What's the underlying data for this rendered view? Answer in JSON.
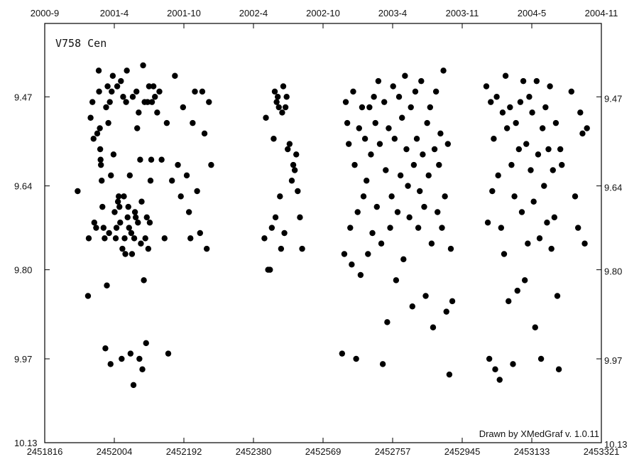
{
  "chart_data": {
    "type": "scatter",
    "title": "V758 Cen",
    "credit": "Drawn by XMedGraf v. 1.0.11",
    "xlabel": "",
    "ylabel": "",
    "xlim": [
      2451816,
      2453321
    ],
    "ylim": [
      10.13,
      9.33
    ],
    "y_inverted": true,
    "grid": false,
    "x_ticks": [
      "2451816",
      "2452004",
      "2452192",
      "2452380",
      "2452569",
      "2452757",
      "2452945",
      "2453133",
      "2453321"
    ],
    "top_ticks": [
      "2000-9",
      "2001-4",
      "2001-10",
      "2002-4",
      "2002-10",
      "2003-4",
      "2003-11",
      "2004-5",
      "2004-11"
    ],
    "y_ticks_left": [
      "9.47",
      "9.64",
      "9.80",
      "9.97",
      "10.13"
    ],
    "y_ticks_right": [
      "9.47",
      "9.64",
      "9.80",
      "9.97",
      "10.13"
    ],
    "series": [
      {
        "color": "#000000",
        "points": [
          [
            2451905,
            9.65
          ],
          [
            2451933,
            9.85
          ],
          [
            2451935,
            9.74
          ],
          [
            2451940,
            9.51
          ],
          [
            2451945,
            9.48
          ],
          [
            2451948,
            9.55
          ],
          [
            2451950,
            9.71
          ],
          [
            2451955,
            9.72
          ],
          [
            2451958,
            9.54
          ],
          [
            2451962,
            9.42
          ],
          [
            2451963,
            9.46
          ],
          [
            2451965,
            9.53
          ],
          [
            2451966,
            9.57
          ],
          [
            2451967,
            9.59
          ],
          [
            2451968,
            9.6
          ],
          [
            2451970,
            9.63
          ],
          [
            2451972,
            9.68
          ],
          [
            2451975,
            9.72
          ],
          [
            2451978,
            9.74
          ],
          [
            2451980,
            9.95
          ],
          [
            2451982,
            9.49
          ],
          [
            2451984,
            9.83
          ],
          [
            2451986,
            9.45
          ],
          [
            2451988,
            9.52
          ],
          [
            2451990,
            9.73
          ],
          [
            2451992,
            9.48
          ],
          [
            2451994,
            9.98
          ],
          [
            2451995,
            9.62
          ],
          [
            2451997,
            9.46
          ],
          [
            2452000,
            9.43
          ],
          [
            2452002,
            9.58
          ],
          [
            2452005,
            9.69
          ],
          [
            2452008,
            9.74
          ],
          [
            2452010,
            9.72
          ],
          [
            2452012,
            9.45
          ],
          [
            2452014,
            9.67
          ],
          [
            2452016,
            9.66
          ],
          [
            2452018,
            9.68
          ],
          [
            2452020,
            9.71
          ],
          [
            2452022,
            9.44
          ],
          [
            2452024,
            9.97
          ],
          [
            2452026,
            9.76
          ],
          [
            2452028,
            9.47
          ],
          [
            2452030,
            9.66
          ],
          [
            2452032,
            9.74
          ],
          [
            2452034,
            9.77
          ],
          [
            2452036,
            9.48
          ],
          [
            2452038,
            9.42
          ],
          [
            2452040,
            9.7
          ],
          [
            2452042,
            9.68
          ],
          [
            2452044,
            9.72
          ],
          [
            2452046,
            9.62
          ],
          [
            2452048,
            9.96
          ],
          [
            2452050,
            9.73
          ],
          [
            2452052,
            9.77
          ],
          [
            2452054,
            9.47
          ],
          [
            2452056,
            10.02
          ],
          [
            2452058,
            9.74
          ],
          [
            2452060,
            9.69
          ],
          [
            2452062,
            9.7
          ],
          [
            2452064,
            9.46
          ],
          [
            2452066,
            9.53
          ],
          [
            2452068,
            9.71
          ],
          [
            2452070,
            9.5
          ],
          [
            2452072,
            9.97
          ],
          [
            2452074,
            9.59
          ],
          [
            2452076,
            9.75
          ],
          [
            2452078,
            9.67
          ],
          [
            2452080,
            9.99
          ],
          [
            2452082,
            9.41
          ],
          [
            2452084,
            9.82
          ],
          [
            2452086,
            9.48
          ],
          [
            2452088,
            9.74
          ],
          [
            2452090,
            9.94
          ],
          [
            2452092,
            9.7
          ],
          [
            2452094,
            9.48
          ],
          [
            2452096,
            9.76
          ],
          [
            2452098,
            9.45
          ],
          [
            2452100,
            9.71
          ],
          [
            2452102,
            9.63
          ],
          [
            2452104,
            9.59
          ],
          [
            2452106,
            9.48
          ],
          [
            2452110,
            9.45
          ],
          [
            2452114,
            9.47
          ],
          [
            2452120,
            9.5
          ],
          [
            2452126,
            9.46
          ],
          [
            2452132,
            9.59
          ],
          [
            2452140,
            9.74
          ],
          [
            2452146,
            9.52
          ],
          [
            2452150,
            9.96
          ],
          [
            2452160,
            9.63
          ],
          [
            2452168,
            9.43
          ],
          [
            2452176,
            9.6
          ],
          [
            2452184,
            9.66
          ],
          [
            2452190,
            9.49
          ],
          [
            2452200,
            9.62
          ],
          [
            2452206,
            9.69
          ],
          [
            2452210,
            9.74
          ],
          [
            2452216,
            9.52
          ],
          [
            2452222,
            9.46
          ],
          [
            2452228,
            9.65
          ],
          [
            2452236,
            9.73
          ],
          [
            2452242,
            9.46
          ],
          [
            2452248,
            9.54
          ],
          [
            2452254,
            9.76
          ],
          [
            2452260,
            9.48
          ],
          [
            2452266,
            9.6
          ],
          [
            2452410,
            9.74
          ],
          [
            2452414,
            9.51
          ],
          [
            2452420,
            9.8
          ],
          [
            2452425,
            9.8
          ],
          [
            2452430,
            9.72
          ],
          [
            2452435,
            9.55
          ],
          [
            2452438,
            9.46
          ],
          [
            2452440,
            9.7
          ],
          [
            2452443,
            9.48
          ],
          [
            2452446,
            9.47
          ],
          [
            2452449,
            9.49
          ],
          [
            2452452,
            9.66
          ],
          [
            2452455,
            9.76
          ],
          [
            2452458,
            9.5
          ],
          [
            2452461,
            9.45
          ],
          [
            2452464,
            9.73
          ],
          [
            2452467,
            9.49
          ],
          [
            2452470,
            9.47
          ],
          [
            2452473,
            9.57
          ],
          [
            2452478,
            9.56
          ],
          [
            2452484,
            9.63
          ],
          [
            2452488,
            9.6
          ],
          [
            2452492,
            9.61
          ],
          [
            2452496,
            9.58
          ],
          [
            2452500,
            9.65
          ],
          [
            2452506,
            9.7
          ],
          [
            2452512,
            9.76
          ],
          [
            2452620,
            9.96
          ],
          [
            2452626,
            9.77
          ],
          [
            2452630,
            9.48
          ],
          [
            2452634,
            9.52
          ],
          [
            2452638,
            9.56
          ],
          [
            2452642,
            9.72
          ],
          [
            2452646,
            9.79
          ],
          [
            2452650,
            9.46
          ],
          [
            2452654,
            9.6
          ],
          [
            2452658,
            9.97
          ],
          [
            2452662,
            9.69
          ],
          [
            2452666,
            9.53
          ],
          [
            2452670,
            9.81
          ],
          [
            2452674,
            9.49
          ],
          [
            2452678,
            9.66
          ],
          [
            2452682,
            9.55
          ],
          [
            2452686,
            9.63
          ],
          [
            2452690,
            9.77
          ],
          [
            2452694,
            9.49
          ],
          [
            2452698,
            9.58
          ],
          [
            2452702,
            9.73
          ],
          [
            2452706,
            9.47
          ],
          [
            2452710,
            9.52
          ],
          [
            2452714,
            9.68
          ],
          [
            2452718,
            9.44
          ],
          [
            2452722,
            9.56
          ],
          [
            2452726,
            9.75
          ],
          [
            2452730,
            9.98
          ],
          [
            2452734,
            9.48
          ],
          [
            2452738,
            9.61
          ],
          [
            2452742,
            9.9
          ],
          [
            2452746,
            9.53
          ],
          [
            2452750,
            9.72
          ],
          [
            2452754,
            9.66
          ],
          [
            2452758,
            9.45
          ],
          [
            2452762,
            9.55
          ],
          [
            2452766,
            9.82
          ],
          [
            2452770,
            9.69
          ],
          [
            2452774,
            9.47
          ],
          [
            2452778,
            9.62
          ],
          [
            2452782,
            9.51
          ],
          [
            2452786,
            9.78
          ],
          [
            2452790,
            9.43
          ],
          [
            2452794,
            9.57
          ],
          [
            2452798,
            9.64
          ],
          [
            2452802,
            9.7
          ],
          [
            2452806,
            9.49
          ],
          [
            2452810,
            9.87
          ],
          [
            2452814,
            9.6
          ],
          [
            2452818,
            9.46
          ],
          [
            2452822,
            9.55
          ],
          [
            2452826,
            9.72
          ],
          [
            2452830,
            9.65
          ],
          [
            2452834,
            9.44
          ],
          [
            2452838,
            9.58
          ],
          [
            2452842,
            9.68
          ],
          [
            2452846,
            9.85
          ],
          [
            2452850,
            9.52
          ],
          [
            2452854,
            9.62
          ],
          [
            2452858,
            9.49
          ],
          [
            2452862,
            9.75
          ],
          [
            2452866,
            9.91
          ],
          [
            2452870,
            9.57
          ],
          [
            2452874,
            9.46
          ],
          [
            2452878,
            9.69
          ],
          [
            2452882,
            9.6
          ],
          [
            2452886,
            9.54
          ],
          [
            2452890,
            9.72
          ],
          [
            2452894,
            9.42
          ],
          [
            2452898,
            9.66
          ],
          [
            2452902,
            9.88
          ],
          [
            2452906,
            9.56
          ],
          [
            2452910,
            10.0
          ],
          [
            2452914,
            9.76
          ],
          [
            2452918,
            9.86
          ],
          [
            2453010,
            9.45
          ],
          [
            2453014,
            9.71
          ],
          [
            2453018,
            9.97
          ],
          [
            2453022,
            9.48
          ],
          [
            2453026,
            9.65
          ],
          [
            2453030,
            9.55
          ],
          [
            2453034,
            9.99
          ],
          [
            2453038,
            9.47
          ],
          [
            2453042,
            9.62
          ],
          [
            2453046,
            10.01
          ],
          [
            2453050,
            9.72
          ],
          [
            2453054,
            9.5
          ],
          [
            2453058,
            9.77
          ],
          [
            2453062,
            9.43
          ],
          [
            2453066,
            9.53
          ],
          [
            2453070,
            9.86
          ],
          [
            2453074,
            9.49
          ],
          [
            2453078,
            9.6
          ],
          [
            2453082,
            9.98
          ],
          [
            2453086,
            9.66
          ],
          [
            2453090,
            9.52
          ],
          [
            2453094,
            9.84
          ],
          [
            2453098,
            9.57
          ],
          [
            2453102,
            9.48
          ],
          [
            2453106,
            9.69
          ],
          [
            2453110,
            9.44
          ],
          [
            2453114,
            9.82
          ],
          [
            2453118,
            9.56
          ],
          [
            2453122,
            9.75
          ],
          [
            2453126,
            9.47
          ],
          [
            2453130,
            9.61
          ],
          [
            2453134,
            9.5
          ],
          [
            2453138,
            9.67
          ],
          [
            2453142,
            9.91
          ],
          [
            2453146,
            9.44
          ],
          [
            2453150,
            9.58
          ],
          [
            2453154,
            9.74
          ],
          [
            2453158,
            9.97
          ],
          [
            2453162,
            9.53
          ],
          [
            2453166,
            9.64
          ],
          [
            2453170,
            9.49
          ],
          [
            2453174,
            9.71
          ],
          [
            2453178,
            9.57
          ],
          [
            2453182,
            9.45
          ],
          [
            2453186,
            9.76
          ],
          [
            2453190,
            9.61
          ],
          [
            2453194,
            9.7
          ],
          [
            2453198,
            9.52
          ],
          [
            2453202,
            9.85
          ],
          [
            2453206,
            9.99
          ],
          [
            2453210,
            9.57
          ],
          [
            2453214,
            9.6
          ],
          [
            2453240,
            9.46
          ],
          [
            2453250,
            9.66
          ],
          [
            2453258,
            9.72
          ],
          [
            2453264,
            9.5
          ],
          [
            2453270,
            9.54
          ],
          [
            2453276,
            9.75
          ],
          [
            2453282,
            9.53
          ]
        ]
      }
    ]
  }
}
